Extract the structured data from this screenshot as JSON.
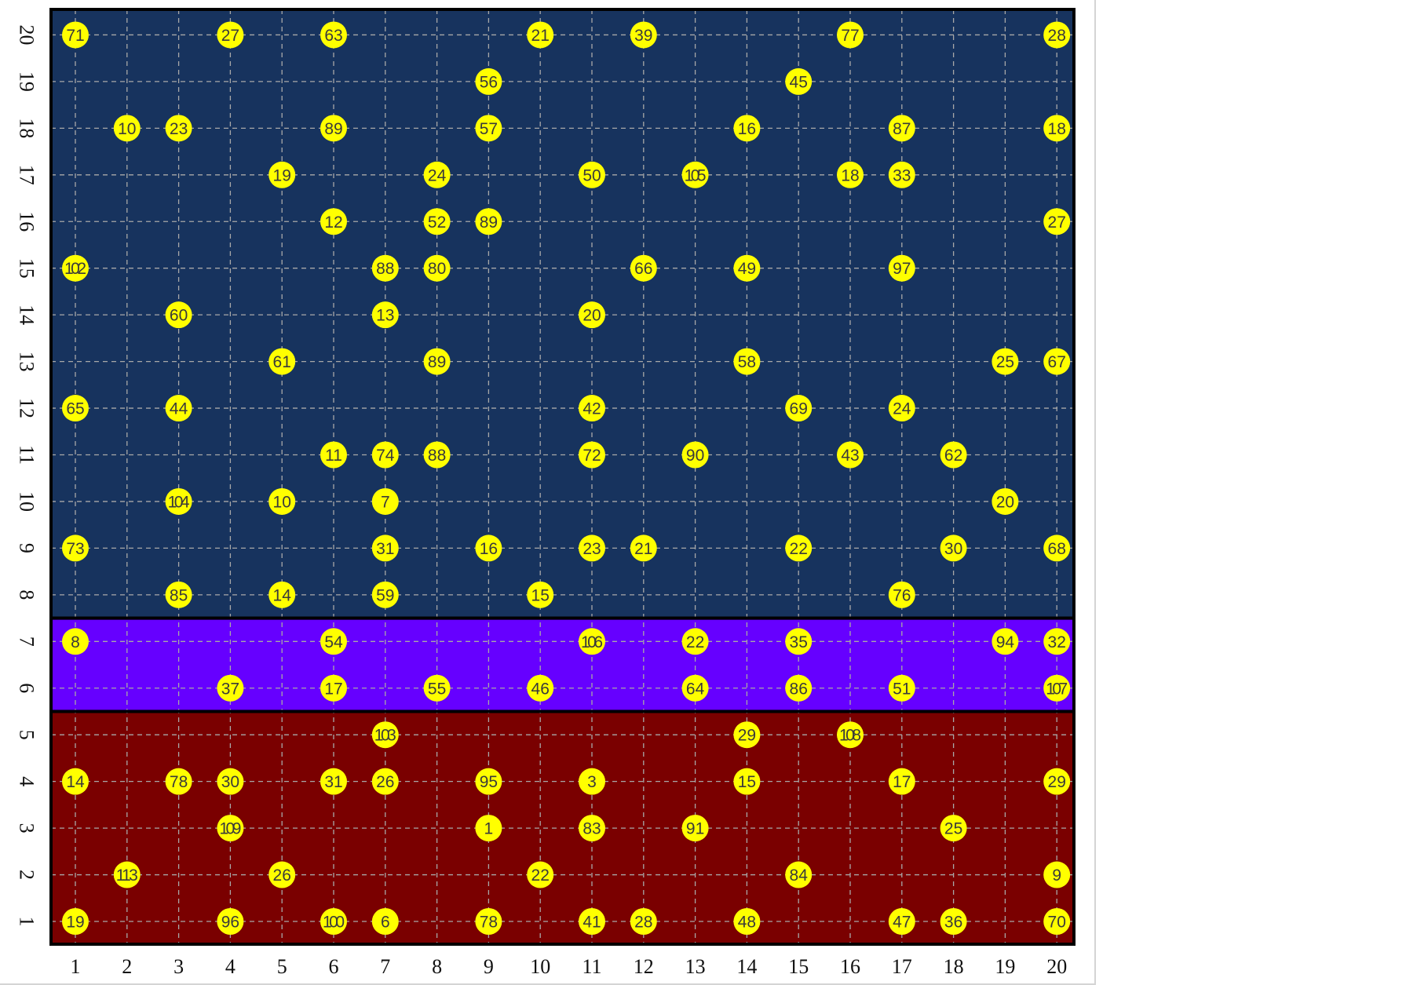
{
  "chart_data": {
    "type": "scatter",
    "title": "",
    "xlabel": "",
    "ylabel": "",
    "xlim": [
      1,
      20
    ],
    "ylim": [
      1,
      20
    ],
    "x_ticks": [
      "1",
      "2",
      "3",
      "4",
      "5",
      "6",
      "7",
      "8",
      "9",
      "10",
      "11",
      "12",
      "13",
      "14",
      "15",
      "16",
      "17",
      "18",
      "19",
      "20"
    ],
    "y_ticks": [
      "1",
      "2",
      "3",
      "4",
      "5",
      "6",
      "7",
      "8",
      "9",
      "10",
      "11",
      "12",
      "13",
      "14",
      "15",
      "16",
      "17",
      "18",
      "19",
      "20"
    ],
    "grid": true,
    "bands": [
      {
        "y_from": 1,
        "y_to": 5,
        "color": "#7a0000"
      },
      {
        "y_from": 6,
        "y_to": 7,
        "color": "#6600ff"
      },
      {
        "y_from": 8,
        "y_to": 20,
        "color": "#17335e"
      }
    ],
    "point_color": "#ffff00",
    "points": [
      {
        "x": 1,
        "y": 20,
        "label": "71"
      },
      {
        "x": 4,
        "y": 20,
        "label": "27"
      },
      {
        "x": 6,
        "y": 20,
        "label": "63"
      },
      {
        "x": 10,
        "y": 20,
        "label": "21"
      },
      {
        "x": 12,
        "y": 20,
        "label": "39"
      },
      {
        "x": 16,
        "y": 20,
        "label": "77"
      },
      {
        "x": 20,
        "y": 20,
        "label": "28"
      },
      {
        "x": 9,
        "y": 19,
        "label": "56"
      },
      {
        "x": 15,
        "y": 19,
        "label": "45"
      },
      {
        "x": 2,
        "y": 18,
        "label": "10"
      },
      {
        "x": 3,
        "y": 18,
        "label": "23"
      },
      {
        "x": 6,
        "y": 18,
        "label": "89"
      },
      {
        "x": 9,
        "y": 18,
        "label": "57"
      },
      {
        "x": 14,
        "y": 18,
        "label": "16"
      },
      {
        "x": 17,
        "y": 18,
        "label": "87"
      },
      {
        "x": 20,
        "y": 18,
        "label": "18"
      },
      {
        "x": 5,
        "y": 17,
        "label": "19"
      },
      {
        "x": 8,
        "y": 17,
        "label": "24"
      },
      {
        "x": 11,
        "y": 17,
        "label": "50"
      },
      {
        "x": 13,
        "y": 17,
        "label": "105"
      },
      {
        "x": 16,
        "y": 17,
        "label": "18"
      },
      {
        "x": 17,
        "y": 17,
        "label": "33"
      },
      {
        "x": 6,
        "y": 16,
        "label": "12"
      },
      {
        "x": 8,
        "y": 16,
        "label": "52"
      },
      {
        "x": 9,
        "y": 16,
        "label": "89"
      },
      {
        "x": 20,
        "y": 16,
        "label": "27"
      },
      {
        "x": 1,
        "y": 15,
        "label": "102"
      },
      {
        "x": 7,
        "y": 15,
        "label": "88"
      },
      {
        "x": 8,
        "y": 15,
        "label": "80"
      },
      {
        "x": 12,
        "y": 15,
        "label": "66"
      },
      {
        "x": 14,
        "y": 15,
        "label": "49"
      },
      {
        "x": 17,
        "y": 15,
        "label": "97"
      },
      {
        "x": 3,
        "y": 14,
        "label": "60"
      },
      {
        "x": 7,
        "y": 14,
        "label": "13"
      },
      {
        "x": 11,
        "y": 14,
        "label": "20"
      },
      {
        "x": 5,
        "y": 13,
        "label": "61"
      },
      {
        "x": 8,
        "y": 13,
        "label": "89"
      },
      {
        "x": 14,
        "y": 13,
        "label": "58"
      },
      {
        "x": 19,
        "y": 13,
        "label": "25"
      },
      {
        "x": 20,
        "y": 13,
        "label": "67"
      },
      {
        "x": 1,
        "y": 12,
        "label": "65"
      },
      {
        "x": 3,
        "y": 12,
        "label": "44"
      },
      {
        "x": 11,
        "y": 12,
        "label": "42"
      },
      {
        "x": 15,
        "y": 12,
        "label": "69"
      },
      {
        "x": 17,
        "y": 12,
        "label": "24"
      },
      {
        "x": 6,
        "y": 11,
        "label": "11"
      },
      {
        "x": 7,
        "y": 11,
        "label": "74"
      },
      {
        "x": 8,
        "y": 11,
        "label": "88"
      },
      {
        "x": 11,
        "y": 11,
        "label": "72"
      },
      {
        "x": 13,
        "y": 11,
        "label": "90"
      },
      {
        "x": 16,
        "y": 11,
        "label": "43"
      },
      {
        "x": 18,
        "y": 11,
        "label": "62"
      },
      {
        "x": 3,
        "y": 10,
        "label": "104"
      },
      {
        "x": 5,
        "y": 10,
        "label": "10"
      },
      {
        "x": 7,
        "y": 10,
        "label": "7"
      },
      {
        "x": 19,
        "y": 10,
        "label": "20"
      },
      {
        "x": 1,
        "y": 9,
        "label": "73"
      },
      {
        "x": 7,
        "y": 9,
        "label": "31"
      },
      {
        "x": 9,
        "y": 9,
        "label": "16"
      },
      {
        "x": 11,
        "y": 9,
        "label": "23"
      },
      {
        "x": 12,
        "y": 9,
        "label": "21"
      },
      {
        "x": 15,
        "y": 9,
        "label": "22"
      },
      {
        "x": 18,
        "y": 9,
        "label": "30"
      },
      {
        "x": 20,
        "y": 9,
        "label": "68"
      },
      {
        "x": 3,
        "y": 8,
        "label": "85"
      },
      {
        "x": 5,
        "y": 8,
        "label": "14"
      },
      {
        "x": 7,
        "y": 8,
        "label": "59"
      },
      {
        "x": 10,
        "y": 8,
        "label": "15"
      },
      {
        "x": 17,
        "y": 8,
        "label": "76"
      },
      {
        "x": 1,
        "y": 7,
        "label": "8"
      },
      {
        "x": 6,
        "y": 7,
        "label": "54"
      },
      {
        "x": 11,
        "y": 7,
        "label": "106"
      },
      {
        "x": 13,
        "y": 7,
        "label": "22"
      },
      {
        "x": 15,
        "y": 7,
        "label": "35"
      },
      {
        "x": 19,
        "y": 7,
        "label": "94"
      },
      {
        "x": 20,
        "y": 7,
        "label": "32"
      },
      {
        "x": 4,
        "y": 6,
        "label": "37"
      },
      {
        "x": 6,
        "y": 6,
        "label": "17"
      },
      {
        "x": 8,
        "y": 6,
        "label": "55"
      },
      {
        "x": 10,
        "y": 6,
        "label": "46"
      },
      {
        "x": 13,
        "y": 6,
        "label": "64"
      },
      {
        "x": 15,
        "y": 6,
        "label": "86"
      },
      {
        "x": 17,
        "y": 6,
        "label": "51"
      },
      {
        "x": 20,
        "y": 6,
        "label": "107"
      },
      {
        "x": 7,
        "y": 5,
        "label": "103"
      },
      {
        "x": 14,
        "y": 5,
        "label": "29"
      },
      {
        "x": 16,
        "y": 5,
        "label": "108"
      },
      {
        "x": 1,
        "y": 4,
        "label": "14"
      },
      {
        "x": 3,
        "y": 4,
        "label": "78"
      },
      {
        "x": 4,
        "y": 4,
        "label": "30"
      },
      {
        "x": 6,
        "y": 4,
        "label": "31"
      },
      {
        "x": 7,
        "y": 4,
        "label": "26"
      },
      {
        "x": 9,
        "y": 4,
        "label": "95"
      },
      {
        "x": 11,
        "y": 4,
        "label": "3"
      },
      {
        "x": 14,
        "y": 4,
        "label": "15"
      },
      {
        "x": 17,
        "y": 4,
        "label": "17"
      },
      {
        "x": 20,
        "y": 4,
        "label": "29"
      },
      {
        "x": 4,
        "y": 3,
        "label": "109"
      },
      {
        "x": 9,
        "y": 3,
        "label": "1"
      },
      {
        "x": 11,
        "y": 3,
        "label": "83"
      },
      {
        "x": 13,
        "y": 3,
        "label": "91"
      },
      {
        "x": 18,
        "y": 3,
        "label": "25"
      },
      {
        "x": 2,
        "y": 2,
        "label": "113"
      },
      {
        "x": 5,
        "y": 2,
        "label": "26"
      },
      {
        "x": 10,
        "y": 2,
        "label": "22"
      },
      {
        "x": 15,
        "y": 2,
        "label": "84"
      },
      {
        "x": 20,
        "y": 2,
        "label": "9"
      },
      {
        "x": 1,
        "y": 1,
        "label": "19"
      },
      {
        "x": 4,
        "y": 1,
        "label": "96"
      },
      {
        "x": 6,
        "y": 1,
        "label": "100"
      },
      {
        "x": 7,
        "y": 1,
        "label": "6"
      },
      {
        "x": 9,
        "y": 1,
        "label": "78"
      },
      {
        "x": 11,
        "y": 1,
        "label": "41"
      },
      {
        "x": 12,
        "y": 1,
        "label": "28"
      },
      {
        "x": 14,
        "y": 1,
        "label": "48"
      },
      {
        "x": 17,
        "y": 1,
        "label": "47"
      },
      {
        "x": 18,
        "y": 1,
        "label": "36"
      },
      {
        "x": 20,
        "y": 1,
        "label": "70"
      }
    ]
  }
}
